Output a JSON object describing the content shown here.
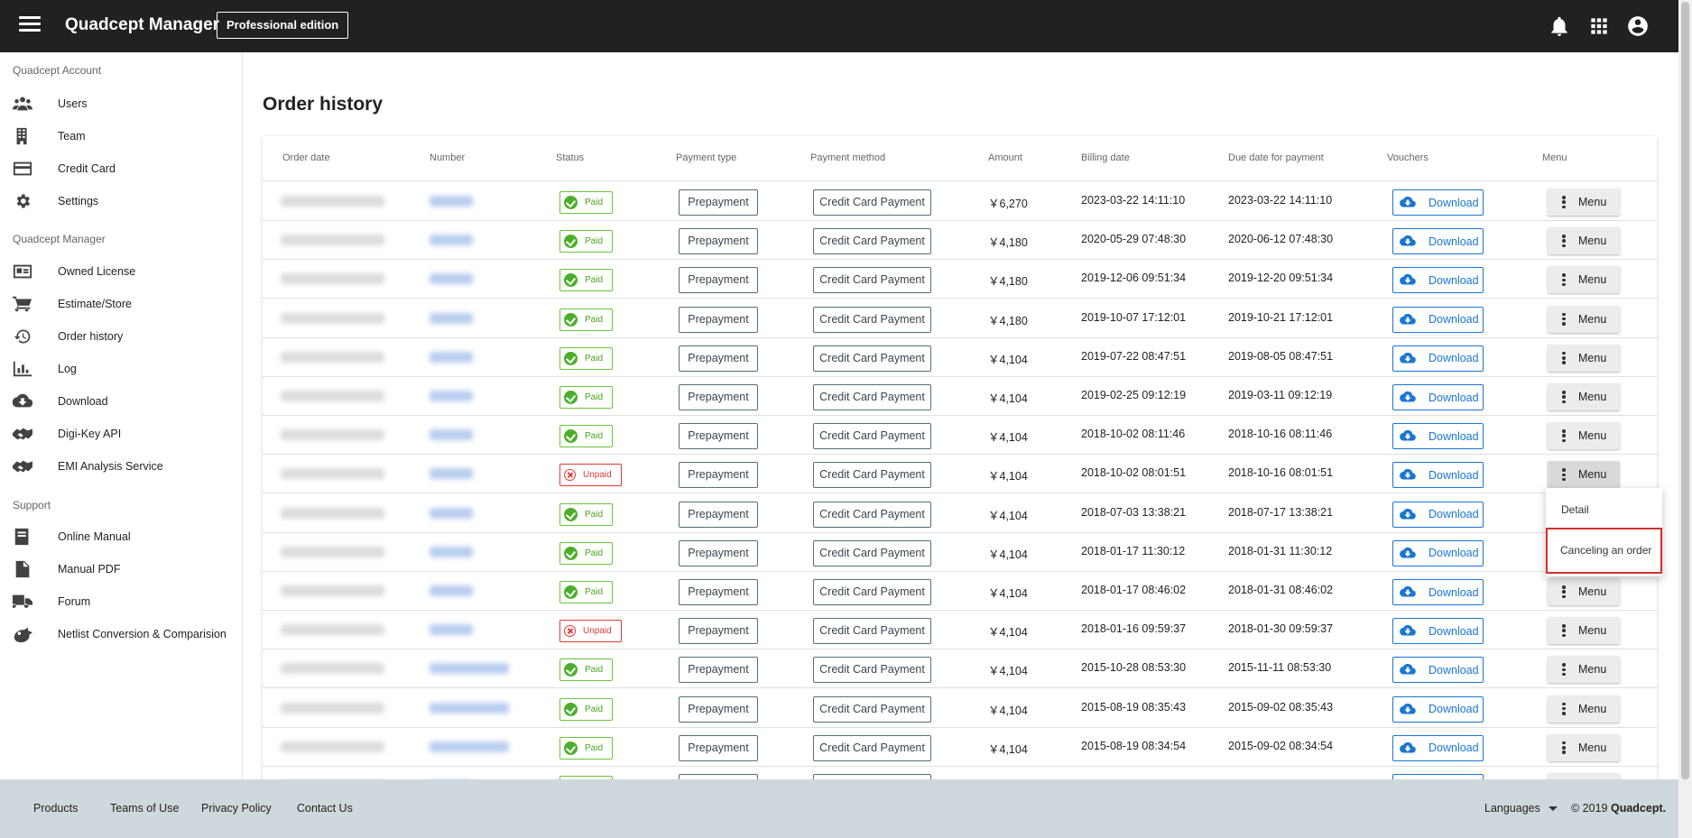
{
  "header": {
    "app_title": "Quadcept Manager",
    "edition": "Professional edition",
    "icons": [
      "menu-icon",
      "bell-icon",
      "apps-grid-icon",
      "account-icon"
    ]
  },
  "sidebar": {
    "sections": [
      {
        "title": "Quadcept Account",
        "items": [
          {
            "label": "Users",
            "icon": "users-icon"
          },
          {
            "label": "Team",
            "icon": "building-icon"
          },
          {
            "label": "Credit Card",
            "icon": "credit-card-icon"
          },
          {
            "label": "Settings",
            "icon": "gear-icon"
          }
        ]
      },
      {
        "title": "Quadcept Manager",
        "items": [
          {
            "label": "Owned License",
            "icon": "license-card-icon"
          },
          {
            "label": "Estimate/Store",
            "icon": "cart-icon"
          },
          {
            "label": "Order history",
            "icon": "history-icon"
          },
          {
            "label": "Log",
            "icon": "bar-chart-icon"
          },
          {
            "label": "Download",
            "icon": "cloud-download-icon"
          },
          {
            "label": "Digi-Key API",
            "icon": "handshake-icon"
          },
          {
            "label": "EMI Analysis Service",
            "icon": "handshake-icon"
          }
        ]
      },
      {
        "title": "Support",
        "items": [
          {
            "label": "Online Manual",
            "icon": "book-icon"
          },
          {
            "label": "Manual PDF",
            "icon": "pdf-file-icon"
          },
          {
            "label": "Forum",
            "icon": "truck-icon"
          },
          {
            "label": "Netlist Conversion & Comparision",
            "icon": "dragon-icon"
          }
        ]
      }
    ]
  },
  "page": {
    "title": "Order history"
  },
  "table": {
    "columns": [
      "Order date",
      "Number",
      "Status",
      "Payment type",
      "Payment method",
      "Amount",
      "Billing date",
      "Due date for payment",
      "Vouchers",
      "Menu"
    ],
    "download_label": "Download",
    "menu_label": "Menu",
    "rows": [
      {
        "status": "Paid",
        "payment_type": "Prepayment",
        "payment_method": "Credit Card Payment",
        "amount": "￥6,270",
        "billing_date": "2023-03-22 14:11:10",
        "due_date": "2023-03-22 14:11:10"
      },
      {
        "status": "Paid",
        "payment_type": "Prepayment",
        "payment_method": "Credit Card Payment",
        "amount": "￥4,180",
        "billing_date": "2020-05-29 07:48:30",
        "due_date": "2020-06-12 07:48:30"
      },
      {
        "status": "Paid",
        "payment_type": "Prepayment",
        "payment_method": "Credit Card Payment",
        "amount": "￥4,180",
        "billing_date": "2019-12-06 09:51:34",
        "due_date": "2019-12-20 09:51:34"
      },
      {
        "status": "Paid",
        "payment_type": "Prepayment",
        "payment_method": "Credit Card Payment",
        "amount": "￥4,180",
        "billing_date": "2019-10-07 17:12:01",
        "due_date": "2019-10-21 17:12:01"
      },
      {
        "status": "Paid",
        "payment_type": "Prepayment",
        "payment_method": "Credit Card Payment",
        "amount": "￥4,104",
        "billing_date": "2019-07-22 08:47:51",
        "due_date": "2019-08-05 08:47:51"
      },
      {
        "status": "Paid",
        "payment_type": "Prepayment",
        "payment_method": "Credit Card Payment",
        "amount": "￥4,104",
        "billing_date": "2019-02-25 09:12:19",
        "due_date": "2019-03-11 09:12:19"
      },
      {
        "status": "Paid",
        "payment_type": "Prepayment",
        "payment_method": "Credit Card Payment",
        "amount": "￥4,104",
        "billing_date": "2018-10-02 08:11:46",
        "due_date": "2018-10-16 08:11:46"
      },
      {
        "status": "Unpaid",
        "payment_type": "Prepayment",
        "payment_method": "Credit Card Payment",
        "amount": "￥4,104",
        "billing_date": "2018-10-02 08:01:51",
        "due_date": "2018-10-16 08:01:51"
      },
      {
        "status": "Paid",
        "payment_type": "Prepayment",
        "payment_method": "Credit Card Payment",
        "amount": "￥4,104",
        "billing_date": "2018-07-03 13:38:21",
        "due_date": "2018-07-17 13:38:21"
      },
      {
        "status": "Paid",
        "payment_type": "Prepayment",
        "payment_method": "Credit Card Payment",
        "amount": "￥4,104",
        "billing_date": "2018-01-17 11:30:12",
        "due_date": "2018-01-31 11:30:12"
      },
      {
        "status": "Paid",
        "payment_type": "Prepayment",
        "payment_method": "Credit Card Payment",
        "amount": "￥4,104",
        "billing_date": "2018-01-17 08:46:02",
        "due_date": "2018-01-31 08:46:02"
      },
      {
        "status": "Unpaid",
        "payment_type": "Prepayment",
        "payment_method": "Credit Card Payment",
        "amount": "￥4,104",
        "billing_date": "2018-01-16 09:59:37",
        "due_date": "2018-01-30 09:59:37"
      },
      {
        "status": "Paid",
        "payment_type": "Prepayment",
        "payment_method": "Credit Card Payment",
        "amount": "￥4,104",
        "billing_date": "2015-10-28 08:53:30",
        "due_date": "2015-11-11 08:53:30"
      },
      {
        "status": "Paid",
        "payment_type": "Prepayment",
        "payment_method": "Credit Card Payment",
        "amount": "￥4,104",
        "billing_date": "2015-08-19 08:35:43",
        "due_date": "2015-09-02 08:35:43"
      },
      {
        "status": "Paid",
        "payment_type": "Prepayment",
        "payment_method": "Credit Card Payment",
        "amount": "￥4,104",
        "billing_date": "2015-08-19 08:34:54",
        "due_date": "2015-09-02 08:34:54"
      }
    ]
  },
  "row_menu": {
    "open_row": 8,
    "items": [
      "Detail",
      "Canceling an order"
    ],
    "highlighted_item": "Canceling an order"
  },
  "footer": {
    "links": [
      "Products",
      "Teams of Use",
      "Privacy Policy",
      "Contact Us"
    ],
    "language_label": "Languages",
    "copyright_prefix": "© 2019",
    "copyright_brand": "Quadcept."
  },
  "colors": {
    "topbar": "#212121",
    "paid": "#4caf2b",
    "unpaid": "#e53935",
    "link_blue": "#1976d2",
    "footer_bg": "#cfd8dc",
    "highlight_border": "#d32f2f"
  }
}
